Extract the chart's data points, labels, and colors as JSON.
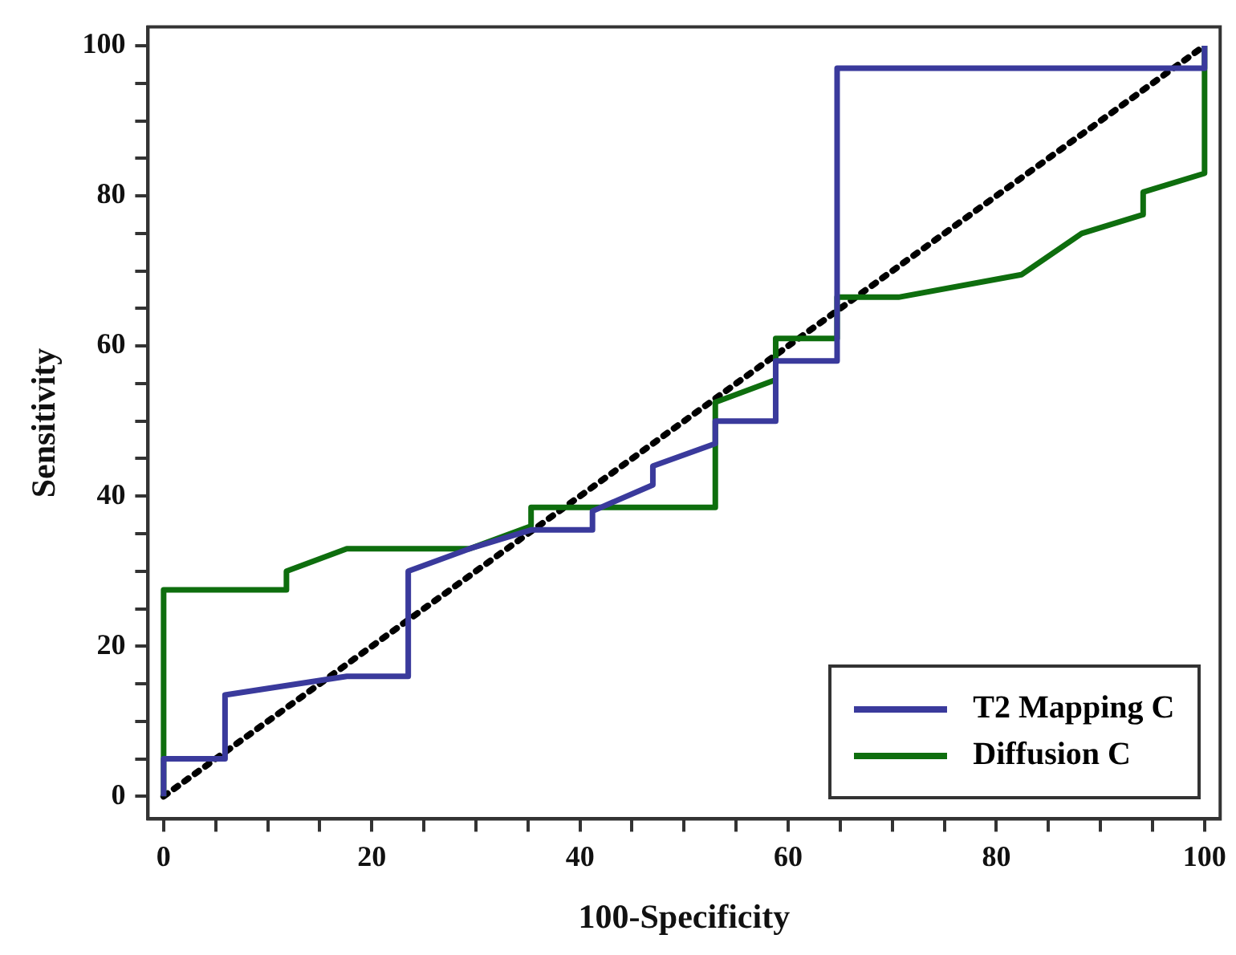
{
  "chart_data": {
    "type": "line",
    "xlabel": "100-Specificity",
    "ylabel": "Sensitivity",
    "xlim": [
      -1.5,
      101.5
    ],
    "ylim": [
      -3,
      102.5
    ],
    "xticks": [
      0,
      {
        "value": 5,
        "label": null
      },
      {
        "value": 10,
        "label": null
      },
      {
        "value": 15,
        "label": null
      },
      20,
      {
        "value": 25,
        "label": null
      },
      {
        "value": 30,
        "label": null
      },
      {
        "value": 35,
        "label": null
      },
      40,
      {
        "value": 45,
        "label": null
      },
      {
        "value": 50,
        "label": null
      },
      {
        "value": 55,
        "label": null
      },
      60,
      {
        "value": 65,
        "label": null
      },
      {
        "value": 70,
        "label": null
      },
      {
        "value": 75,
        "label": null
      },
      80,
      {
        "value": 85,
        "label": null
      },
      {
        "value": 90,
        "label": null
      },
      {
        "value": 95,
        "label": null
      },
      100
    ],
    "yticks": [
      0,
      {
        "value": 5,
        "label": null
      },
      {
        "value": 10,
        "label": null
      },
      {
        "value": 15,
        "label": null
      },
      20,
      {
        "value": 25,
        "label": null
      },
      {
        "value": 30,
        "label": null
      },
      {
        "value": 35,
        "label": null
      },
      40,
      {
        "value": 45,
        "label": null
      },
      {
        "value": 50,
        "label": null
      },
      {
        "value": 55,
        "label": null
      },
      60,
      {
        "value": 65,
        "label": null
      },
      {
        "value": 70,
        "label": null
      },
      {
        "value": 75,
        "label": null
      },
      80,
      {
        "value": 85,
        "label": null
      },
      {
        "value": 90,
        "label": null
      },
      {
        "value": 95,
        "label": null
      },
      100
    ],
    "grid": false,
    "legend": "bottom right",
    "marker": "none",
    "series": [
      {
        "name": "T2 Mapping C",
        "color": "#3a3a9c",
        "line_style": "solid",
        "x": [
          0,
          0,
          5.9,
          5.9,
          17.6,
          23.5,
          23.5,
          29.4,
          35.3,
          41.2,
          41.2,
          47,
          47,
          53,
          53,
          58.8,
          58.8,
          64.7,
          64.7,
          100,
          100
        ],
        "values": [
          0,
          5,
          5,
          13.5,
          16,
          16,
          30,
          33,
          35.5,
          35.5,
          38,
          41.5,
          44,
          47,
          50,
          50,
          58,
          58,
          97,
          97,
          100
        ]
      },
      {
        "name": "Diffusion C",
        "color": "#0e6e0e",
        "line_style": "solid",
        "x": [
          0,
          0,
          11.8,
          11.8,
          17.6,
          29.4,
          35.3,
          35.3,
          53,
          53,
          58.8,
          58.8,
          64.7,
          64.7,
          70.6,
          82.4,
          88.2,
          94.1,
          94.1,
          100,
          100
        ],
        "values": [
          0,
          27.5,
          27.5,
          30,
          33,
          33,
          36,
          38.5,
          38.5,
          52.5,
          55.5,
          61,
          61,
          66.5,
          66.5,
          69.5,
          75,
          77.5,
          80.5,
          83,
          100
        ]
      },
      {
        "color": "#000000",
        "line_style": "dotted",
        "x": [
          0,
          100
        ],
        "values": [
          0,
          100
        ]
      }
    ]
  }
}
